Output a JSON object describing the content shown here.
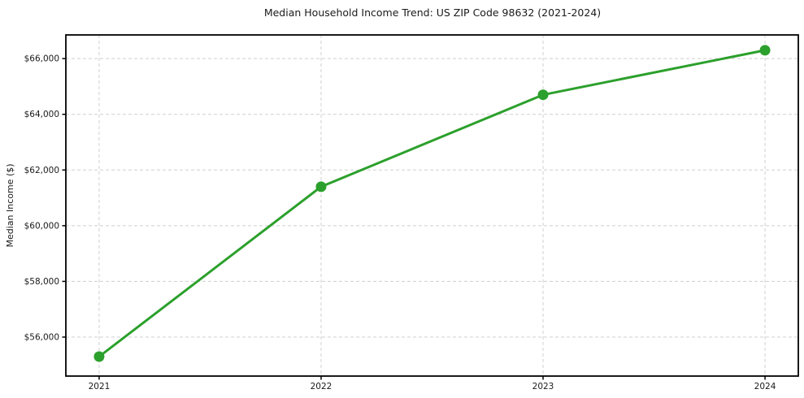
{
  "page": {
    "background_color": "#ffffff"
  },
  "chart_data": {
    "type": "line",
    "title": "Median Household Income Trend: US ZIP Code 98632 (2021-2024)",
    "xlabel": "",
    "ylabel": "Median Income ($)",
    "x": [
      2021,
      2022,
      2023,
      2024
    ],
    "x_tick_labels": [
      "2021",
      "2022",
      "2023",
      "2024"
    ],
    "values": [
      55300,
      61400,
      64700,
      66300
    ],
    "value_labels": [
      "$55,300",
      "$61,400",
      "$64,700",
      "$66,300"
    ],
    "yticks": [
      56000,
      58000,
      60000,
      62000,
      64000,
      66000
    ],
    "ytick_labels": [
      "$56,000",
      "$58,000",
      "$60,000",
      "$62,000",
      "$64,000",
      "$66,000"
    ],
    "xlim": [
      2020.85,
      2024.15
    ],
    "ylim": [
      54600,
      66850
    ],
    "grid": "on",
    "grid_style": "dashed",
    "legend": "none",
    "colors": {
      "line": "#2ca02c",
      "marker": "#2ca02c",
      "grid": "#cfcfcf",
      "spine": "#000000",
      "text": "#1a1a1a",
      "background": "#ffffff"
    }
  }
}
